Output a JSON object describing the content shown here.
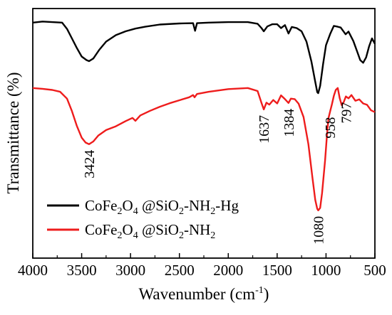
{
  "chart_data": {
    "type": "line",
    "xlabel": "Wavenumber (cm",
    "xlabel_sup": "-1",
    "xlabel_close": ")",
    "ylabel": "Transmittance (%)",
    "xlim": [
      4000,
      500
    ],
    "x_reversed": true,
    "y_ticks_shown": false,
    "x_ticks": [
      4000,
      3500,
      3000,
      2500,
      2000,
      1500,
      1000,
      500
    ],
    "grid": false,
    "legend_position": "lower-left",
    "series": [
      {
        "name": "CoFe2O4 @SiO2-NH2-Hg",
        "legend": {
          "a": "CoFe",
          "b": "2",
          "c": "O",
          "d": "4",
          "e": " @SiO",
          "f": "2",
          "g": "-NH",
          "h": "2",
          "i": "-Hg"
        },
        "color": "#000000",
        "points": [
          [
            4000,
            96.8
          ],
          [
            3900,
            97.2
          ],
          [
            3800,
            97.0
          ],
          [
            3700,
            96.8
          ],
          [
            3650,
            94.5
          ],
          [
            3600,
            91.0
          ],
          [
            3550,
            87.5
          ],
          [
            3500,
            84.3
          ],
          [
            3450,
            83.0
          ],
          [
            3424,
            82.6
          ],
          [
            3380,
            83.6
          ],
          [
            3320,
            86.8
          ],
          [
            3250,
            89.8
          ],
          [
            3150,
            92.2
          ],
          [
            3050,
            93.6
          ],
          [
            2950,
            94.6
          ],
          [
            2850,
            95.3
          ],
          [
            2700,
            96.1
          ],
          [
            2500,
            96.5
          ],
          [
            2360,
            96.6
          ],
          [
            2340,
            93.8
          ],
          [
            2320,
            96.6
          ],
          [
            2200,
            96.8
          ],
          [
            2000,
            97.0
          ],
          [
            1800,
            97.0
          ],
          [
            1700,
            96.4
          ],
          [
            1660,
            94.8
          ],
          [
            1637,
            93.6
          ],
          [
            1600,
            95.4
          ],
          [
            1550,
            96.2
          ],
          [
            1500,
            96.2
          ],
          [
            1460,
            94.8
          ],
          [
            1420,
            95.9
          ],
          [
            1384,
            92.8
          ],
          [
            1350,
            95.2
          ],
          [
            1300,
            94.8
          ],
          [
            1250,
            93.6
          ],
          [
            1200,
            89.8
          ],
          [
            1150,
            82.5
          ],
          [
            1110,
            75.0
          ],
          [
            1090,
            71.2
          ],
          [
            1080,
            70.8
          ],
          [
            1060,
            73.5
          ],
          [
            1030,
            81.5
          ],
          [
            1000,
            88.5
          ],
          [
            958,
            92.6
          ],
          [
            920,
            95.6
          ],
          [
            880,
            95.3
          ],
          [
            850,
            95.0
          ],
          [
            800,
            92.5
          ],
          [
            770,
            93.5
          ],
          [
            720,
            90.0
          ],
          [
            680,
            86.0
          ],
          [
            650,
            83.0
          ],
          [
            620,
            82.0
          ],
          [
            590,
            84.0
          ],
          [
            560,
            88.0
          ],
          [
            530,
            91.0
          ],
          [
            500,
            89.0
          ]
        ]
      },
      {
        "name": "CoFe2O4 @SiO2-NH2",
        "legend": {
          "a": "CoFe",
          "b": "2",
          "c": "O",
          "d": "4",
          "e": " @SiO",
          "f": "2",
          "g": "-NH",
          "h": "2",
          "i": ""
        },
        "color": "#ee1c1c",
        "points": [
          [
            4000,
            72.7
          ],
          [
            3900,
            72.4
          ],
          [
            3800,
            72.0
          ],
          [
            3720,
            71.3
          ],
          [
            3650,
            68.8
          ],
          [
            3600,
            64.2
          ],
          [
            3550,
            58.8
          ],
          [
            3500,
            54.4
          ],
          [
            3460,
            52.6
          ],
          [
            3424,
            52.0
          ],
          [
            3380,
            53.0
          ],
          [
            3330,
            55.2
          ],
          [
            3250,
            57.2
          ],
          [
            3150,
            58.6
          ],
          [
            3050,
            60.5
          ],
          [
            2980,
            61.7
          ],
          [
            2950,
            60.6
          ],
          [
            2900,
            62.6
          ],
          [
            2800,
            64.3
          ],
          [
            2700,
            65.8
          ],
          [
            2600,
            67.1
          ],
          [
            2500,
            68.2
          ],
          [
            2400,
            69.3
          ],
          [
            2360,
            70.1
          ],
          [
            2345,
            69.3
          ],
          [
            2320,
            70.5
          ],
          [
            2200,
            71.3
          ],
          [
            2000,
            72.3
          ],
          [
            1800,
            72.7
          ],
          [
            1700,
            71.6
          ],
          [
            1660,
            67.2
          ],
          [
            1637,
            64.8
          ],
          [
            1610,
            67.3
          ],
          [
            1580,
            66.6
          ],
          [
            1540,
            68.3
          ],
          [
            1500,
            67.0
          ],
          [
            1460,
            70.0
          ],
          [
            1420,
            68.6
          ],
          [
            1384,
            67.2
          ],
          [
            1360,
            68.8
          ],
          [
            1320,
            68.6
          ],
          [
            1280,
            66.9
          ],
          [
            1230,
            62.0
          ],
          [
            1180,
            52.0
          ],
          [
            1140,
            40.0
          ],
          [
            1110,
            31.5
          ],
          [
            1090,
            28.2
          ],
          [
            1080,
            27.6
          ],
          [
            1060,
            28.5
          ],
          [
            1040,
            34.0
          ],
          [
            1010,
            46.0
          ],
          [
            990,
            55.5
          ],
          [
            975,
            61.6
          ],
          [
            958,
            64.1
          ],
          [
            940,
            66.7
          ],
          [
            920,
            69.8
          ],
          [
            900,
            72.0
          ],
          [
            880,
            72.7
          ],
          [
            860,
            69.0
          ],
          [
            840,
            66.4
          ],
          [
            820,
            67.4
          ],
          [
            797,
            69.6
          ],
          [
            770,
            68.9
          ],
          [
            740,
            70.1
          ],
          [
            700,
            68.0
          ],
          [
            660,
            68.5
          ],
          [
            620,
            67.0
          ],
          [
            580,
            66.5
          ],
          [
            540,
            64.5
          ],
          [
            500,
            63.8
          ]
        ]
      }
    ],
    "annotations": [
      {
        "text": "3424",
        "x": 3424
      },
      {
        "text": "1637",
        "x": 1637
      },
      {
        "text": "1384",
        "x": 1384
      },
      {
        "text": "1080",
        "x": 1080
      },
      {
        "text": "958",
        "x": 958
      },
      {
        "text": "797",
        "x": 797
      }
    ]
  }
}
